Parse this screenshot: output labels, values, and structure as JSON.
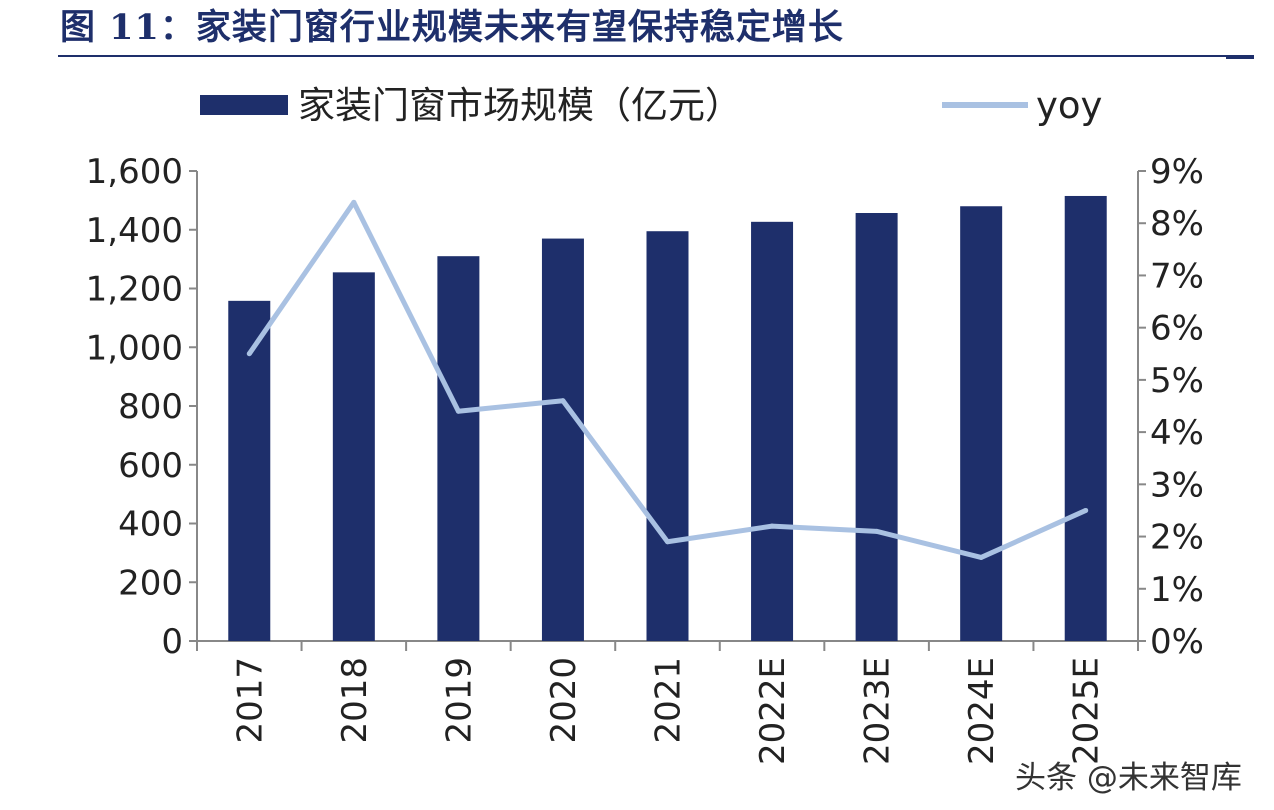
{
  "title": "图 11：家装门窗行业规模未来有望保持稳定增长",
  "watermark": "头条 @未来智库",
  "colors": {
    "bar": "#1e2f6b",
    "line": "#a9c1e2",
    "title": "#1e2f6b",
    "axis": "#888888"
  },
  "chart_data": {
    "type": "bar",
    "title": "",
    "categories": [
      "2017",
      "2018",
      "2019",
      "2020",
      "2021",
      "2022E",
      "2023E",
      "2024E",
      "2025E"
    ],
    "series": [
      {
        "name": "家装门窗市场规模（亿元）",
        "type": "bar",
        "axis": "left",
        "values": [
          1158,
          1255,
          1310,
          1370,
          1395,
          1427,
          1457,
          1480,
          1515
        ]
      },
      {
        "name": "yoy",
        "type": "line",
        "axis": "right",
        "values": [
          5.5,
          8.4,
          4.4,
          4.6,
          1.9,
          2.2,
          2.1,
          1.6,
          2.5
        ]
      }
    ],
    "y_left": {
      "ylim": [
        0,
        1600
      ],
      "ticks": [
        "0",
        "200",
        "400",
        "600",
        "800",
        "1,000",
        "1,200",
        "1,400",
        "1,600"
      ]
    },
    "y_right": {
      "ylim": [
        0,
        9
      ],
      "ticks": [
        "0%",
        "1%",
        "2%",
        "3%",
        "4%",
        "5%",
        "6%",
        "7%",
        "8%",
        "9%"
      ]
    },
    "legend_position": "top",
    "grid": false
  }
}
